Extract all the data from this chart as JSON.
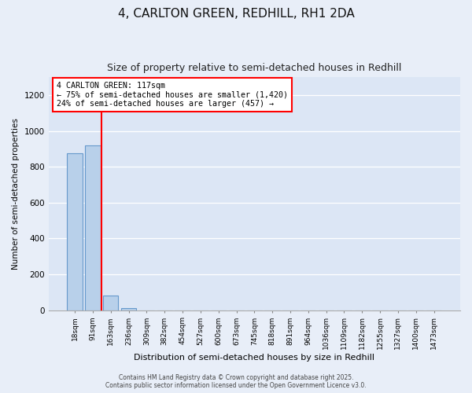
{
  "title": "4, CARLTON GREEN, REDHILL, RH1 2DA",
  "subtitle": "Size of property relative to semi-detached houses in Redhill",
  "xlabel": "Distribution of semi-detached houses by size in Redhill",
  "ylabel": "Number of semi-detached properties",
  "annotation_line1": "4 CARLTON GREEN: 117sqm",
  "annotation_line2": "← 75% of semi-detached houses are smaller (1,420)",
  "annotation_line3": "24% of semi-detached houses are larger (457) →",
  "categories": [
    "18sqm",
    "91sqm",
    "163sqm",
    "236sqm",
    "309sqm",
    "382sqm",
    "454sqm",
    "527sqm",
    "600sqm",
    "673sqm",
    "745sqm",
    "818sqm",
    "891sqm",
    "964sqm",
    "1036sqm",
    "1109sqm",
    "1182sqm",
    "1255sqm",
    "1327sqm",
    "1400sqm",
    "1473sqm"
  ],
  "values": [
    875,
    920,
    80,
    10,
    0,
    0,
    0,
    0,
    0,
    0,
    0,
    0,
    0,
    0,
    0,
    0,
    0,
    0,
    0,
    0,
    0
  ],
  "bar_color": "#b8d0ea",
  "bar_edge_color": "#6699cc",
  "red_line_x": 1.5,
  "ylim": [
    0,
    1300
  ],
  "yticks": [
    0,
    200,
    400,
    600,
    800,
    1000,
    1200
  ],
  "fig_bg_color": "#e8eef8",
  "plot_bg_color": "#dce6f5",
  "grid_color": "#ffffff",
  "footer1": "Contains HM Land Registry data © Crown copyright and database right 2025.",
  "footer2": "Contains public sector information licensed under the Open Government Licence v3.0."
}
